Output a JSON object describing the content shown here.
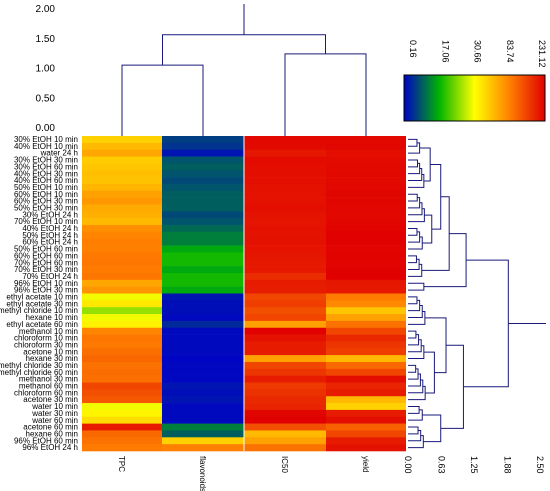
{
  "chart_data": {
    "type": "heatmap",
    "columns": [
      "TPC",
      "flavonoids",
      "IC50",
      "yield"
    ],
    "rows": [
      "30% EtOH 10 min",
      "40% EtOH 10 min",
      "water 24 h",
      "30% EtOH 30 min",
      "30% EtOH 60 min",
      "40% EtOH 30 min",
      "40% EtOH 60 min",
      "50% EtOH 10 min",
      "60% EtOH 10 min",
      "60% EtOH 30 min",
      "50% EtOH 30 min",
      "30% EtOH 24 h",
      "70% EtOH 10 min",
      "40% EtOH 24 h",
      "50% EtOH 24 h",
      "60% EtOH 24 h",
      "50% EtOH 60 min",
      "60% EtOH 60 min",
      "70% EtOH 60 min",
      "70% EtOH 30 min",
      "70% EtOH 24 h",
      "96% EtOH 10 min",
      "96% EtOH 30 min",
      "ethyl acetate 10 min",
      "ethyl acetate 30 min",
      "methyl chloride 10 min",
      "hexane 10 min",
      "ethyl acetate 60 min",
      "methanol 10 min",
      "chloroform 10 min",
      "chloroform 30 min",
      "acetone 10 min",
      "hexane 30 min",
      "methyl chloride 30 min",
      "methyl chloride 60 min",
      "methanol 30 min",
      "methanol 60 min",
      "chloroform 60 min",
      "acetone 30 min",
      "water 10 min",
      "water 30 min",
      "water 60 min",
      "acetone 60 min",
      "hexane 60 min",
      "96% EtOH 60 min",
      "96% EtOH 24 h"
    ],
    "values": [
      [
        50,
        6,
        222,
        222
      ],
      [
        60,
        5,
        220,
        224
      ],
      [
        68,
        2,
        205,
        215
      ],
      [
        52,
        8,
        218,
        219
      ],
      [
        55,
        9,
        216,
        221
      ],
      [
        58,
        8,
        215,
        222
      ],
      [
        56,
        7,
        214,
        220
      ],
      [
        62,
        8,
        213,
        223
      ],
      [
        70,
        9,
        212,
        225
      ],
      [
        74,
        9,
        213,
        224
      ],
      [
        66,
        9,
        215,
        223
      ],
      [
        64,
        7,
        210,
        222
      ],
      [
        60,
        8,
        208,
        224
      ],
      [
        78,
        10,
        212,
        228
      ],
      [
        82,
        12,
        210,
        230
      ],
      [
        86,
        12,
        211,
        229
      ],
      [
        84,
        16,
        209,
        227
      ],
      [
        92,
        18,
        206,
        228
      ],
      [
        94,
        18,
        204,
        226
      ],
      [
        90,
        16,
        203,
        229
      ],
      [
        95,
        18,
        180,
        231
      ],
      [
        68,
        18,
        200,
        205
      ],
      [
        75,
        16,
        198,
        203
      ],
      [
        30,
        2,
        150,
        90
      ],
      [
        40,
        1.5,
        160,
        80
      ],
      [
        25,
        1.5,
        140,
        55
      ],
      [
        30,
        1,
        152,
        70
      ],
      [
        36,
        4,
        70,
        100
      ],
      [
        82,
        1,
        230,
        150
      ],
      [
        95,
        1,
        210,
        185
      ],
      [
        92,
        1,
        200,
        170
      ],
      [
        103,
        1,
        200,
        160
      ],
      [
        112,
        0.5,
        70,
        60
      ],
      [
        100,
        0.8,
        150,
        110
      ],
      [
        106,
        0.8,
        170,
        150
      ],
      [
        105,
        0.8,
        200,
        215
      ],
      [
        150,
        2,
        165,
        190
      ],
      [
        140,
        1.5,
        175,
        200
      ],
      [
        130,
        2,
        185,
        60
      ],
      [
        30,
        1,
        190,
        50
      ],
      [
        35,
        1,
        225,
        200
      ],
      [
        45,
        1,
        231,
        215
      ],
      [
        200,
        12,
        140,
        120
      ],
      [
        110,
        9,
        60,
        150
      ],
      [
        100,
        50,
        70,
        200
      ],
      [
        90,
        85,
        100,
        212
      ]
    ],
    "col_dendro_ticks": [
      "2.00",
      "1.50",
      "1.00",
      "0.50",
      "0.00"
    ],
    "col_dendro_ylim": [
      0,
      2.0
    ],
    "row_dendro_ticks": [
      "0.00",
      "0.63",
      "1.25",
      "1.88",
      "2.50"
    ],
    "row_dendro_xlim": [
      0,
      2.5
    ],
    "legend_ticks": [
      "0.16",
      "17.06",
      "30.66",
      "83.74",
      "231.12"
    ],
    "legend_range": [
      0.16,
      231.12
    ],
    "legend_placement": "top-right",
    "colors": [
      "#0000c8",
      "#00b400",
      "#ffff00",
      "#ff8000",
      "#e00000"
    ]
  }
}
